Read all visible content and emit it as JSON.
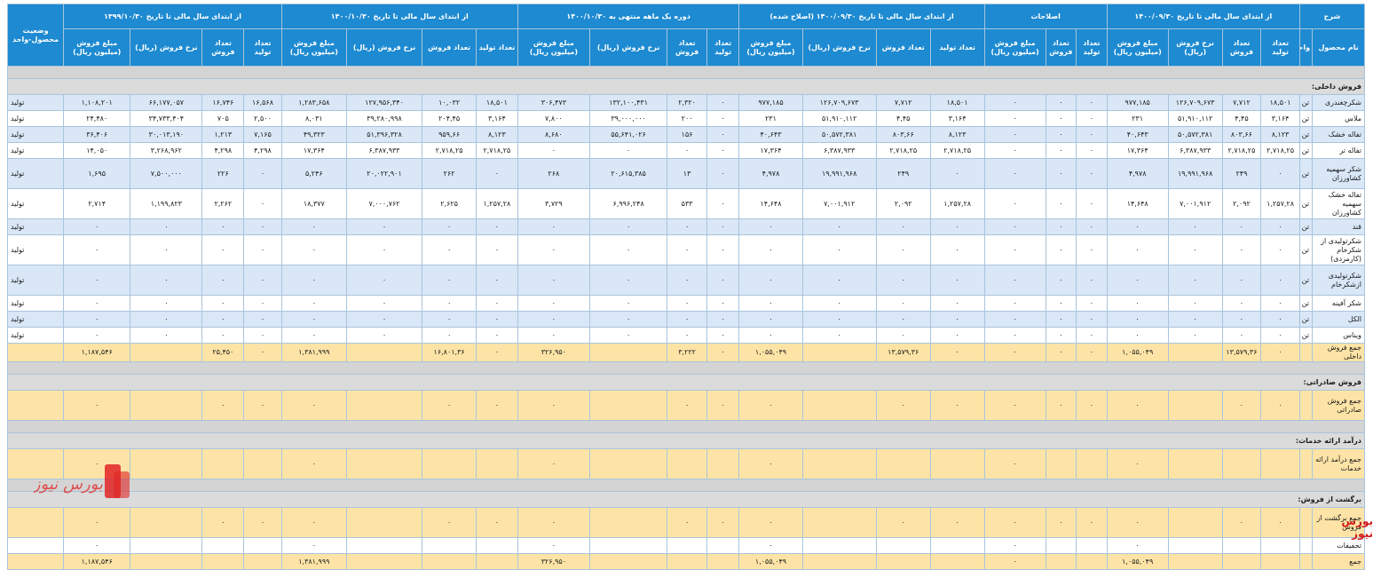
{
  "header": {
    "sharh": "شرح",
    "groups": [
      "از ابتدای سال مالی تا تاریخ ۱۴۰۰/۰۹/۳۰",
      "اصلاحات",
      "از ابتدای سال مالی تا تاریخ ۱۴۰۰/۰۹/۳۰ (اصلاح شده)",
      "دوره یک ماهه منتهی به ۱۴۰۰/۱۰/۳۰",
      "از ابتدای سال مالی تا تاریخ ۱۴۰۰/۱۰/۳۰",
      "از ابتدای سال مالی تا تاریخ ۱۳۹۹/۱۰/۳۰"
    ],
    "status": "وضعیت محصول-واحد",
    "product_name": "نام محصول",
    "unit": "واحد",
    "col_labels": [
      "تعداد تولید",
      "تعداد فروش",
      "نرخ فروش (ریال)",
      "مبلغ فروش (میلیون ریال)"
    ],
    "adj_labels": [
      "تعداد تولید",
      "تعداد فروش",
      "مبلغ فروش (میلیون ریال)"
    ]
  },
  "sections": {
    "domestic": "فروش داخلی:",
    "export": "فروش صادراتی:",
    "services": "درآمد ارائه خدمات:",
    "returns": "برگشت از فروش:"
  },
  "rows": [
    {
      "name": "شکرچغندری",
      "unit": "تن",
      "v": [
        "۱۸,۵۰۱",
        "۷,۷۱۲",
        "۱۲۶,۷۰۹,۶۷۳",
        "۹۷۷,۱۸۵",
        "۰",
        "۰",
        "۰",
        "۱۸,۵۰۱",
        "۷,۷۱۲",
        "۱۲۶,۷۰۹,۶۷۳",
        "۹۷۷,۱۸۵",
        "۰",
        "۲,۳۲۰",
        "۱۳۲,۱۰۰,۴۳۱",
        "۳۰۶,۴۷۳",
        "۱۸,۵۰۱",
        "۱۰,۰۳۲",
        "۱۲۷,۹۵۶,۳۴۰",
        "۱,۲۸۳,۶۵۸",
        "۱۶,۵۶۸",
        "۱۶,۷۴۶",
        "۶۶,۱۷۷,۰۵۷",
        "۱,۱۰۸,۲۰۱"
      ],
      "status": "تولید"
    },
    {
      "name": "ملاس",
      "unit": "تن",
      "v": [
        "۳,۱۶۴",
        "۴,۴۵",
        "۵۱,۹۱۰,۱۱۲",
        "۲۳۱",
        "۰",
        "۰",
        "۰",
        "۳,۱۶۴",
        "۴,۴۵",
        "۵۱,۹۱۰,۱۱۲",
        "۲۳۱",
        "۰",
        "۲۰۰",
        "۳۹,۰۰۰,۰۰۰",
        "۷,۸۰۰",
        "۳,۱۶۴",
        "۲۰۴,۴۵",
        "۳۹,۲۸۰,۹۹۸",
        "۸,۰۳۱",
        "۲,۵۰۰",
        "۷۰۵",
        "۳۴,۷۳۳,۴۰۴",
        "۲۴,۴۸۰"
      ],
      "status": "تولید"
    },
    {
      "name": "تفاله خشک",
      "unit": "تن",
      "v": [
        "۸,۱۲۳",
        "۸۰۳,۶۶",
        "۵۰,۵۷۲,۳۸۱",
        "۴۰,۶۴۳",
        "۰",
        "۰",
        "۰",
        "۸,۱۲۳",
        "۸۰۳,۶۶",
        "۵۰,۵۷۲,۳۸۱",
        "۴۰,۶۴۳",
        "۰",
        "۱۵۶",
        "۵۵,۶۴۱,۰۲۶",
        "۸,۶۸۰",
        "۸,۱۲۳",
        "۹۵۹,۶۶",
        "۵۱,۳۹۶,۳۲۸",
        "۴۹,۳۲۳",
        "۷,۱۶۵",
        "۱,۲۱۳",
        "۳۰,۰۱۳,۱۹۰",
        "۳۶,۴۰۶"
      ],
      "status": "تولید"
    },
    {
      "name": "تفاله تر",
      "unit": "تن",
      "v": [
        "۲,۷۱۸,۲۵",
        "۲,۷۱۸,۲۵",
        "۶,۳۸۷,۹۳۳",
        "۱۷,۳۶۴",
        "۰",
        "۰",
        "۰",
        "۲,۷۱۸,۲۵",
        "۲,۷۱۸,۲۵",
        "۶,۳۸۷,۹۳۳",
        "۱۷,۳۶۴",
        "۰",
        "۰",
        "۰",
        "۰",
        "۲,۷۱۸,۲۵",
        "۲,۷۱۸,۲۵",
        "۶,۳۸۷,۹۳۳",
        "۱۷,۳۶۴",
        "۴,۲۹۸",
        "۴,۲۹۸",
        "۳,۲۶۸,۹۶۲",
        "۱۴,۰۵۰"
      ],
      "status": "تولید"
    },
    {
      "name": "شکر سهمیه کشاورزان",
      "unit": "تن",
      "v": [
        "۰",
        "۲۴۹",
        "۱۹,۹۹۱,۹۶۸",
        "۴,۹۷۸",
        "۰",
        "۰",
        "۰",
        "۰",
        "۲۴۹",
        "۱۹,۹۹۱,۹۶۸",
        "۴,۹۷۸",
        "۰",
        "۱۳",
        "۲۰,۶۱۵,۳۸۵",
        "۲۶۸",
        "۰",
        "۲۶۲",
        "۲۰,۰۲۲,۹۰۱",
        "۵,۲۴۶",
        "۰",
        "۲۲۶",
        "۷,۵۰۰,۰۰۰",
        "۱,۶۹۵"
      ],
      "status": "تولید"
    },
    {
      "name": "تفاله خشک سهمیه کشاورزان",
      "unit": "تن",
      "v": [
        "۱,۲۵۷,۲۸",
        "۲,۰۹۲",
        "۷,۰۰۱,۹۱۲",
        "۱۴,۶۴۸",
        "۰",
        "۰",
        "۰",
        "۱,۲۵۷,۲۸",
        "۲,۰۹۲",
        "۷,۰۰۱,۹۱۲",
        "۱۴,۶۴۸",
        "۰",
        "۵۳۳",
        "۶,۹۹۶,۲۴۸",
        "۳,۷۲۹",
        "۱,۲۵۷,۲۸",
        "۲,۶۲۵",
        "۷,۰۰۰,۷۶۲",
        "۱۸,۳۷۷",
        "۰",
        "۲,۲۶۲",
        "۱,۱۹۹,۸۲۳",
        "۲,۷۱۴"
      ],
      "status": "تولید"
    },
    {
      "name": "قند",
      "unit": "تن",
      "v": [
        "۰",
        "۰",
        "۰",
        "۰",
        "۰",
        "۰",
        "۰",
        "۰",
        "۰",
        "۰",
        "۰",
        "۰",
        "۰",
        "۰",
        "۰",
        "۰",
        "۰",
        "۰",
        "۰",
        "۰",
        "۰",
        "۰",
        "۰"
      ],
      "status": "تولید"
    },
    {
      "name": "شکرتولیدی از شکرخام (کارمزدی)",
      "unit": "تن",
      "v": [
        "۰",
        "۰",
        "۰",
        "۰",
        "۰",
        "۰",
        "۰",
        "۰",
        "۰",
        "۰",
        "۰",
        "۰",
        "۰",
        "۰",
        "۰",
        "۰",
        "۰",
        "۰",
        "۰",
        "۰",
        "۰",
        "۰",
        "۰"
      ],
      "status": "تولید"
    },
    {
      "name": "شکرتولیدی ازشکرخام",
      "unit": "تن",
      "v": [
        "۰",
        "۰",
        "۰",
        "۰",
        "۰",
        "۰",
        "۰",
        "۰",
        "۰",
        "۰",
        "۰",
        "۰",
        "۰",
        "۰",
        "۰",
        "۰",
        "۰",
        "۰",
        "۰",
        "۰",
        "۰",
        "۰",
        "۰"
      ],
      "status": "تولید"
    },
    {
      "name": "شکر آفینه",
      "unit": "تن",
      "v": [
        "۰",
        "۰",
        "۰",
        "۰",
        "۰",
        "۰",
        "۰",
        "۰",
        "۰",
        "۰",
        "۰",
        "۰",
        "۰",
        "۰",
        "۰",
        "۰",
        "۰",
        "۰",
        "۰",
        "۰",
        "۰",
        "۰",
        "۰"
      ],
      "status": "تولید"
    },
    {
      "name": "الکل",
      "unit": "تن",
      "v": [
        "۰",
        "۰",
        "۰",
        "۰",
        "۰",
        "۰",
        "۰",
        "۰",
        "۰",
        "۰",
        "۰",
        "۰",
        "۰",
        "۰",
        "۰",
        "۰",
        "۰",
        "۰",
        "۰",
        "۰",
        "۰",
        "۰",
        "۰"
      ],
      "status": "تولید"
    },
    {
      "name": "ویناس",
      "unit": "تن",
      "v": [
        "۰",
        "۰",
        "۰",
        "۰",
        "۰",
        "۰",
        "۰",
        "۰",
        "۰",
        "۰",
        "۰",
        "۰",
        "۰",
        "۰",
        "۰",
        "۰",
        "۰",
        "۰",
        "۰",
        "۰",
        "۰",
        "۰",
        "۰"
      ],
      "status": "تولید"
    }
  ],
  "sum_domestic": {
    "name": "جمع فروش داخلی",
    "v": [
      "۰",
      "۱۳,۵۷۹,۳۶",
      "",
      "۱,۰۵۵,۰۴۹",
      "۰",
      "۰",
      "۰",
      "۰",
      "۱۳,۵۷۹,۳۶",
      "",
      "۱,۰۵۵,۰۴۹",
      "۰",
      "۳,۲۲۲",
      "",
      "۳۲۶,۹۵۰",
      "۰",
      "۱۶,۸۰۱,۳۶",
      "",
      "۱,۳۸۱,۹۹۹",
      "۰",
      "۲۵,۴۵۰",
      "",
      "۱,۱۸۷,۵۴۶"
    ]
  },
  "sum_export": {
    "name": "جمع فروش صادراتی",
    "v": [
      "۰",
      "۰",
      "",
      "۰",
      "۰",
      "۰",
      "۰",
      "۰",
      "۰",
      "",
      "۰",
      "۰",
      "۰",
      "",
      "۰",
      "۰",
      "۰",
      "",
      "۰",
      "۰",
      "۰",
      "",
      "۰"
    ]
  },
  "sum_services": {
    "name": "جمع درآمد ارائه خدمات",
    "v": [
      "",
      "",
      "",
      "۰",
      "",
      "",
      "۰",
      "",
      "",
      "",
      "۰",
      "",
      "",
      "",
      "۰",
      "",
      "",
      "",
      "۰",
      "",
      "",
      "",
      "۰"
    ]
  },
  "sum_returns": {
    "name": "جمع برگشت از فروش",
    "v": [
      "۰",
      "۰",
      "",
      "۰",
      "۰",
      "۰",
      "۰",
      "۰",
      "۰",
      "",
      "۰",
      "۰",
      "۰",
      "",
      "۰",
      "۰",
      "۰",
      "",
      "۰",
      "۰",
      "۰",
      "",
      "۰"
    ]
  },
  "discounts": {
    "name": "تخفیفات",
    "v": [
      "",
      "",
      "",
      "۰",
      "",
      "",
      "۰",
      "",
      "",
      "",
      "۰",
      "",
      "",
      "",
      "۰",
      "",
      "",
      "",
      "۰",
      "",
      "",
      "",
      "۰"
    ]
  },
  "total": {
    "name": "جمع",
    "v": [
      "",
      "",
      "",
      "۱,۰۵۵,۰۴۹",
      "",
      "",
      "۰",
      "",
      "",
      "",
      "۱,۰۵۵,۰۴۹",
      "",
      "",
      "",
      "۳۲۶,۹۵۰",
      "",
      "",
      "",
      "۱,۳۸۱,۹۹۹",
      "",
      "",
      "",
      "۱,۱۸۷,۵۴۶"
    ]
  },
  "watermark": "بورس نیوز",
  "colors": {
    "header": "#1d8ad1",
    "row_blue": "#d9e7f7",
    "sum": "#fde4a6",
    "section": "#dbdbdb",
    "logo": "#d11a1a"
  }
}
